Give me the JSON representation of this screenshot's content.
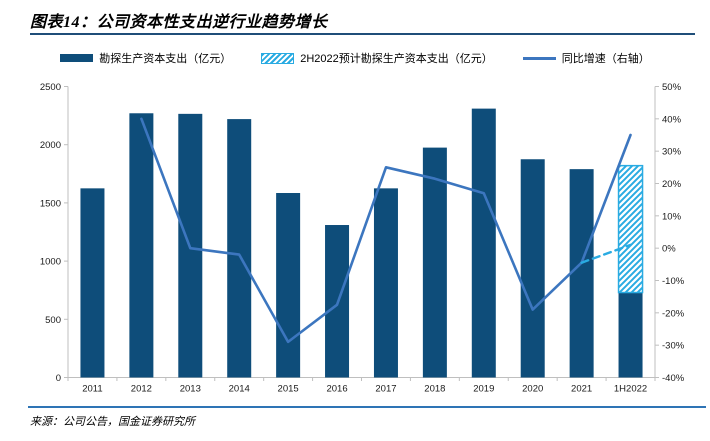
{
  "header": {
    "title": "图表14：公司资本性支出逆行业趋势增长"
  },
  "legend": [
    {
      "label": "勘探生产资本支出（亿元）",
      "kind": "bar",
      "color": "#0E4D7A"
    },
    {
      "label": "2H2022预计勘探生产资本支出（亿元）",
      "kind": "hatch",
      "color": "#29ABE2"
    },
    {
      "label": "同比增速（右轴）",
      "kind": "line",
      "color": "#3C76BF"
    }
  ],
  "footer": {
    "source": "来源：公司公告，国金证券研究所"
  },
  "colors": {
    "bar": "#0E4D7A",
    "forecast": "#29ABE2",
    "line": "#3C76BF",
    "axis": "#BFBFBF",
    "tick_text": "#1a1a1a",
    "title_rule": "#1F4E79",
    "footer_rule": "#2E74B5"
  },
  "chart_data": {
    "type": "combo",
    "title": "公司资本性支出逆行业趋势增长",
    "categories": [
      "2011",
      "2012",
      "2013",
      "2014",
      "2015",
      "2016",
      "2017",
      "2018",
      "2019",
      "2020",
      "2021",
      "1H2022"
    ],
    "series": [
      {
        "name": "勘探生产资本支出（亿元）",
        "kind": "bar",
        "axis": "left",
        "color": "#0E4D7A",
        "values": [
          1625,
          2270,
          2265,
          2220,
          1585,
          1310,
          1625,
          1975,
          2310,
          1875,
          1790,
          730
        ]
      },
      {
        "name": "2H2022预计勘探生产资本支出（亿元）",
        "kind": "bar-forecast-stacked",
        "axis": "left",
        "color": "#29ABE2",
        "hatched": true,
        "values": [
          null,
          null,
          null,
          null,
          null,
          null,
          null,
          null,
          null,
          null,
          null,
          1090
        ]
      },
      {
        "name": "同比增速（右轴）",
        "kind": "line",
        "axis": "right",
        "color": "#3C76BF",
        "values": [
          null,
          40,
          0,
          -2,
          -29,
          -17.5,
          25,
          21.5,
          17,
          -19,
          -4.5,
          35
        ]
      },
      {
        "name": "forecast_yoy_dashed",
        "kind": "line-dashed",
        "axis": "right",
        "color": "#29ABE2",
        "values": [
          null,
          null,
          null,
          null,
          null,
          null,
          null,
          null,
          null,
          null,
          -4.5,
          1
        ]
      }
    ],
    "axes": {
      "left": {
        "min": 0,
        "max": 2500,
        "step": 500,
        "ticks": [
          "0",
          "500",
          "1000",
          "1500",
          "2000",
          "2500"
        ]
      },
      "right": {
        "min": -40,
        "max": 50,
        "step": 10,
        "ticks": [
          "-40%",
          "-30%",
          "-20%",
          "-10%",
          "0%",
          "10%",
          "20%",
          "30%",
          "40%",
          "50%"
        ]
      }
    },
    "grid": false,
    "legend_position": "top-center"
  }
}
